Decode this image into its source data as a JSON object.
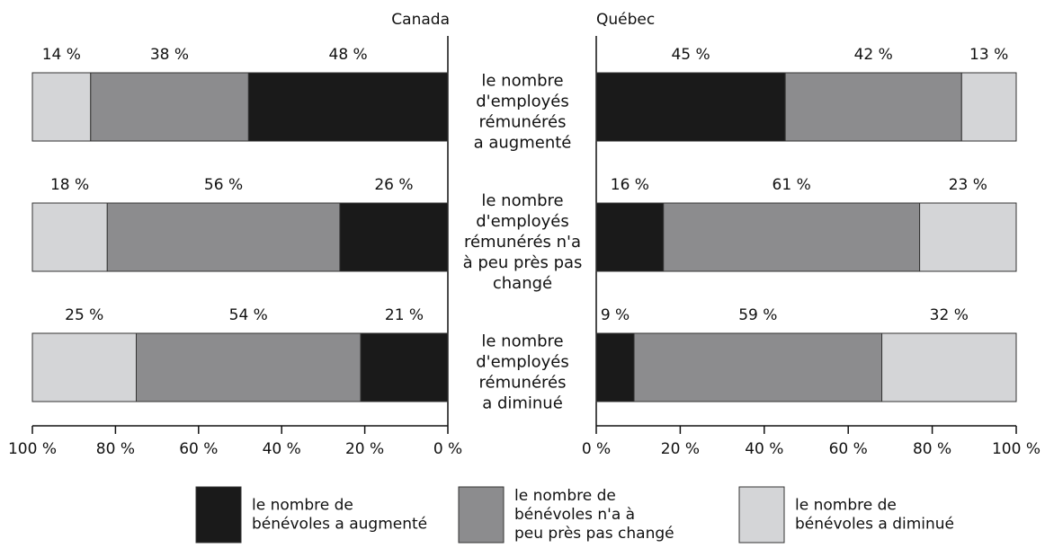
{
  "chart_data": {
    "type": "bar",
    "categories": [
      "le nombre\nd'employés\nrémunérés\na augmenté",
      "le nombre\nd'employés\nrémunérés n'a\nà peu près pas\nchangé",
      "le nombre\nd'employés\nrémunérés\na diminué"
    ],
    "series": [
      {
        "name": "le nombre de\nbénévoles a augmenté",
        "color": "#1a1a1a"
      },
      {
        "name": "le nombre de\nbénévoles n'a à\npeu près pas changé",
        "color": "#8c8c8e"
      },
      {
        "name": "le nombre de\nbénévoles a diminué",
        "color": "#d4d5d7"
      }
    ],
    "panels": [
      {
        "title": "Canada",
        "xlim": [
          100,
          0
        ],
        "xticks": [
          {
            "value": 100,
            "label": "100 %"
          },
          {
            "value": 80,
            "label": "80 %"
          },
          {
            "value": 60,
            "label": "60 %"
          },
          {
            "value": 40,
            "label": "40 %"
          },
          {
            "value": 20,
            "label": "20 %"
          },
          {
            "value": 0,
            "label": "0 %"
          }
        ],
        "values": [
          [
            48,
            26,
            21
          ],
          [
            38,
            56,
            54
          ],
          [
            14,
            18,
            25
          ]
        ],
        "value_labels": [
          [
            "48 %",
            "26 %",
            "21 %"
          ],
          [
            "38 %",
            "56 %",
            "54 %"
          ],
          [
            "14 %",
            "18 %",
            "25 %"
          ]
        ]
      },
      {
        "title": "Québec",
        "xlim": [
          0,
          100
        ],
        "xticks": [
          {
            "value": 0,
            "label": "0 %"
          },
          {
            "value": 20,
            "label": "20 %"
          },
          {
            "value": 40,
            "label": "40 %"
          },
          {
            "value": 60,
            "label": "60 %"
          },
          {
            "value": 80,
            "label": "80 %"
          },
          {
            "value": 100,
            "label": "100 %"
          }
        ],
        "values": [
          [
            45,
            16,
            9
          ],
          [
            42,
            61,
            59
          ],
          [
            13,
            23,
            32
          ]
        ],
        "value_labels": [
          [
            "45 %",
            "16 %",
            "9 %"
          ],
          [
            "42 %",
            "61 %",
            "59 %"
          ],
          [
            "13 %",
            "23 %",
            "32 %"
          ]
        ]
      }
    ]
  }
}
